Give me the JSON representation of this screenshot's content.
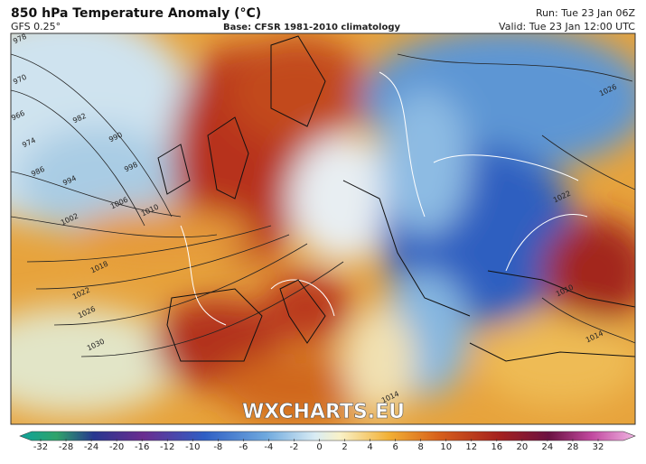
{
  "header": {
    "title": "850 hPa Temperature Anomaly (°C)",
    "model": "GFS 0.25°",
    "base": "Base: CFSR 1981-2010 climatology",
    "run": "Run: Tue 23 Jan 06Z",
    "valid": "Valid: Tue 23 Jan 12:00 UTC"
  },
  "map": {
    "watermark": "WXCHARTS.EU",
    "isobar_labels": [
      "978",
      "970",
      "966",
      "974",
      "982",
      "986",
      "990",
      "994",
      "998",
      "1002",
      "1006",
      "1010",
      "1018",
      "1022",
      "1026",
      "1030",
      "1022",
      "1026",
      "1010",
      "1014",
      "1014"
    ]
  },
  "colorbar": {
    "ticks": [
      -32,
      -28,
      -24,
      -20,
      -16,
      -12,
      -10,
      -8,
      -6,
      -4,
      -2,
      0,
      2,
      4,
      6,
      8,
      10,
      12,
      16,
      20,
      24,
      28,
      32
    ]
  }
}
